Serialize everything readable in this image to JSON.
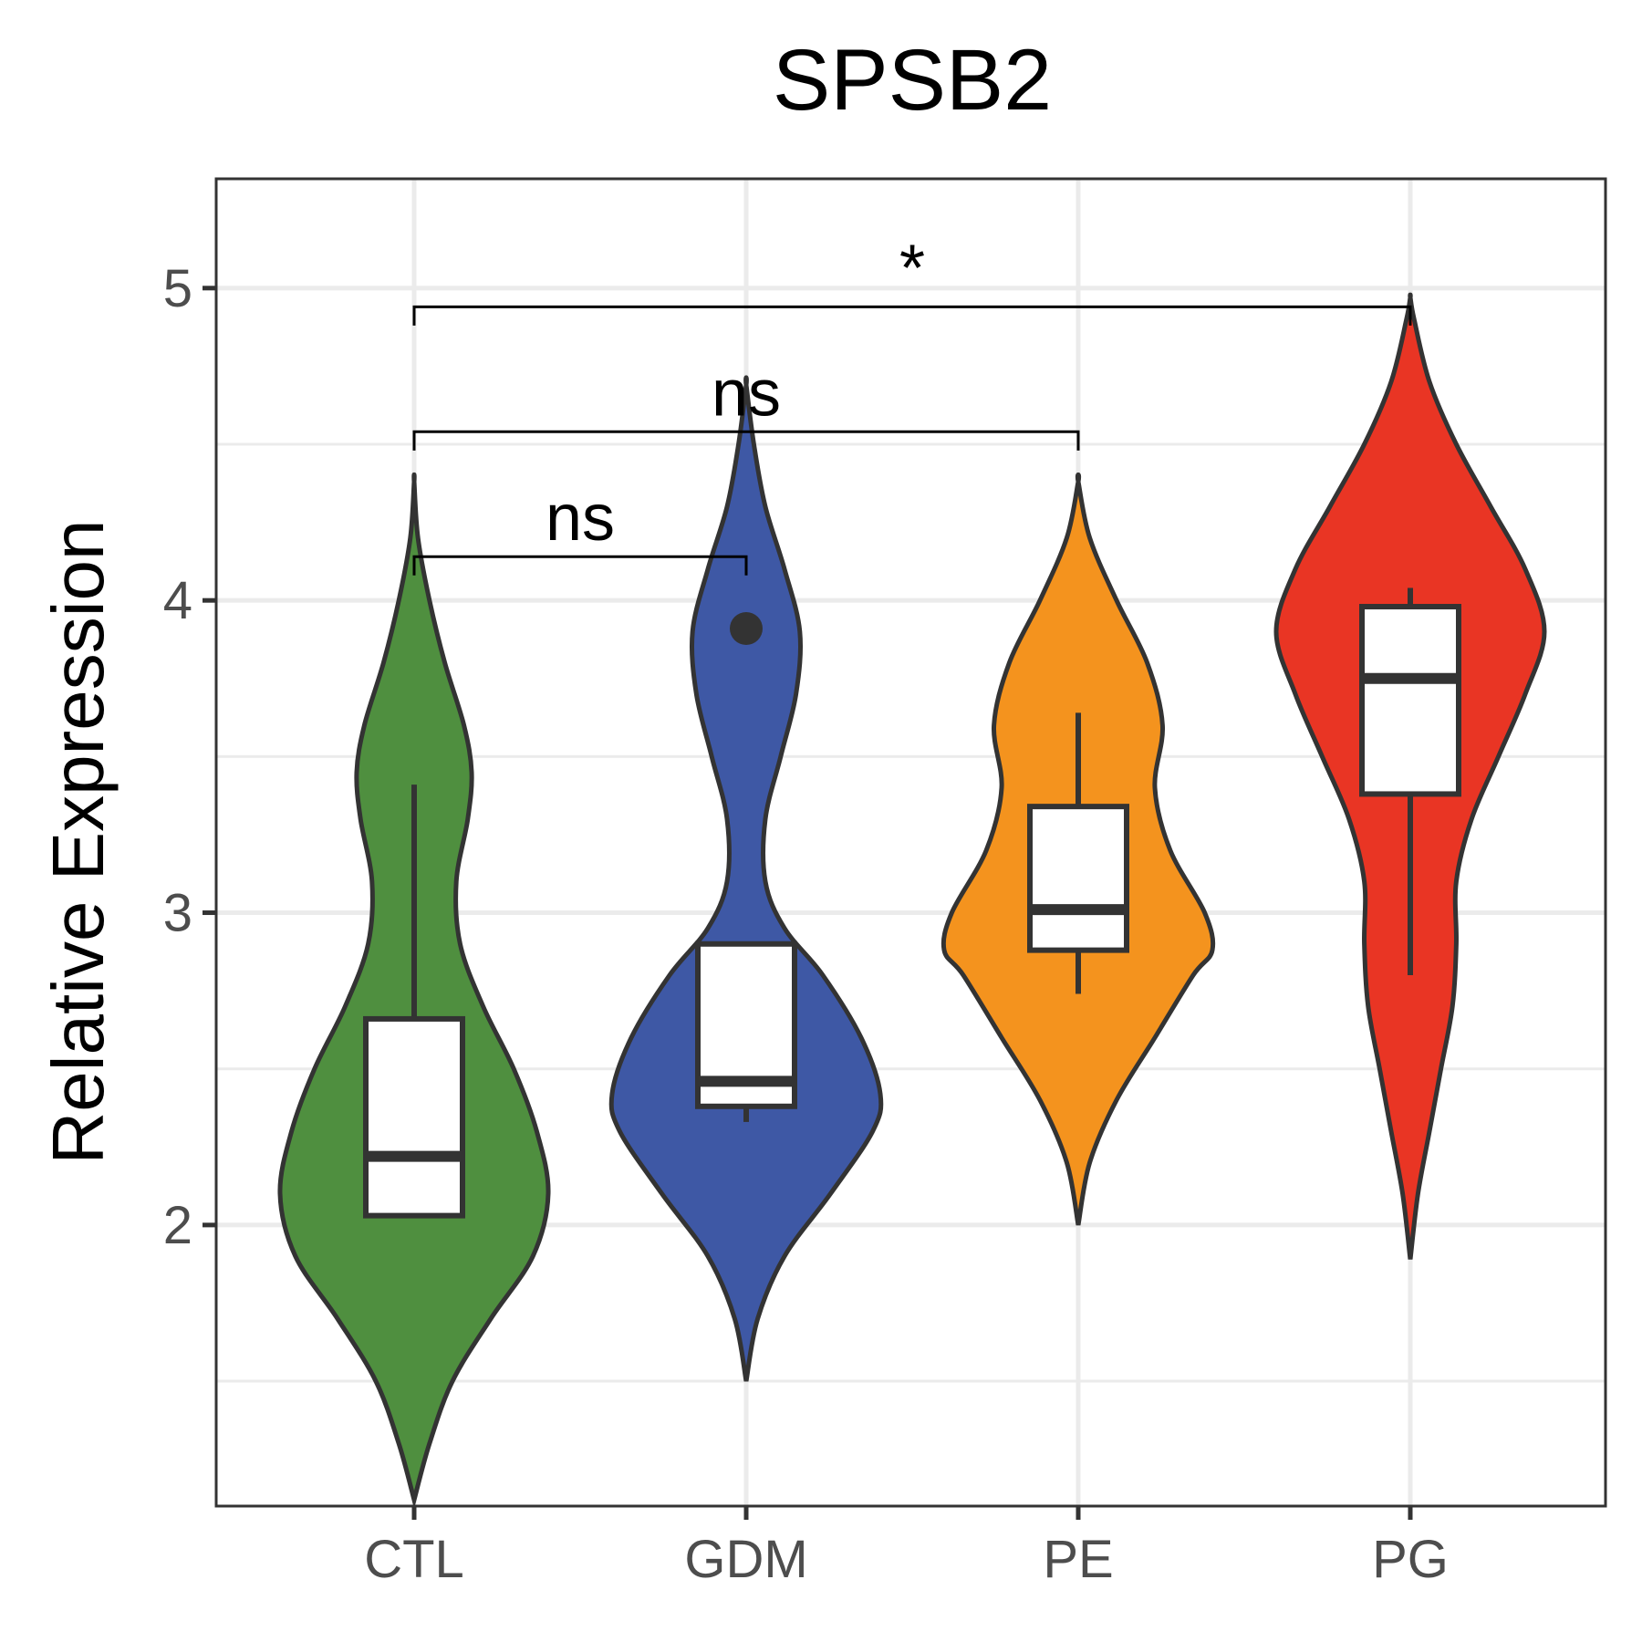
{
  "chart_data": {
    "type": "violin",
    "title": "SPSB2",
    "xlabel": "",
    "ylabel": "Relative Expression",
    "ylim": [
      1.1,
      5.35
    ],
    "y_ticks": [
      "2",
      "3",
      "4",
      "5"
    ],
    "y_tick_values": [
      2,
      3,
      4,
      5
    ],
    "grid": true,
    "categories": [
      "CTL",
      "GDM",
      "PE",
      "PG"
    ],
    "groups": [
      {
        "name": "CTL",
        "color": "#4f8f3f",
        "violin_min": 1.12,
        "violin_max": 4.38,
        "box": {
          "whisker_low": 2.03,
          "q1": 2.03,
          "median": 2.22,
          "q3": 2.66,
          "whisker_high": 3.41
        },
        "outliers": [],
        "density": [
          [
            1.12,
            0
          ],
          [
            1.3,
            0.04
          ],
          [
            1.5,
            0.1
          ],
          [
            1.7,
            0.2
          ],
          [
            1.9,
            0.31
          ],
          [
            2.1,
            0.35
          ],
          [
            2.3,
            0.32
          ],
          [
            2.5,
            0.26
          ],
          [
            2.7,
            0.18
          ],
          [
            2.9,
            0.12
          ],
          [
            3.1,
            0.11
          ],
          [
            3.3,
            0.14
          ],
          [
            3.45,
            0.15
          ],
          [
            3.6,
            0.13
          ],
          [
            3.8,
            0.08
          ],
          [
            4.0,
            0.04
          ],
          [
            4.2,
            0.01
          ],
          [
            4.38,
            0
          ]
        ]
      },
      {
        "name": "GDM",
        "color": "#3e58a5",
        "violin_min": 1.5,
        "violin_max": 4.69,
        "box": {
          "whisker_low": 2.33,
          "q1": 2.38,
          "median": 2.46,
          "q3": 2.9,
          "whisker_high": 2.9
        },
        "outliers": [
          3.91
        ],
        "density": [
          [
            1.5,
            0
          ],
          [
            1.7,
            0.03
          ],
          [
            1.9,
            0.1
          ],
          [
            2.1,
            0.22
          ],
          [
            2.3,
            0.33
          ],
          [
            2.42,
            0.35
          ],
          [
            2.6,
            0.3
          ],
          [
            2.8,
            0.2
          ],
          [
            2.95,
            0.1
          ],
          [
            3.1,
            0.05
          ],
          [
            3.3,
            0.05
          ],
          [
            3.5,
            0.09
          ],
          [
            3.7,
            0.13
          ],
          [
            3.9,
            0.14
          ],
          [
            4.1,
            0.1
          ],
          [
            4.3,
            0.05
          ],
          [
            4.5,
            0.02
          ],
          [
            4.69,
            0
          ]
        ]
      },
      {
        "name": "PE",
        "color": "#f4931e",
        "violin_min": 2.0,
        "violin_max": 4.38,
        "box": {
          "whisker_low": 2.74,
          "q1": 2.88,
          "median": 3.01,
          "q3": 3.34,
          "whisker_high": 3.64
        },
        "outliers": [],
        "density": [
          [
            2.0,
            0
          ],
          [
            2.2,
            0.03
          ],
          [
            2.4,
            0.1
          ],
          [
            2.6,
            0.2
          ],
          [
            2.8,
            0.3
          ],
          [
            2.88,
            0.35
          ],
          [
            3.0,
            0.33
          ],
          [
            3.2,
            0.24
          ],
          [
            3.4,
            0.2
          ],
          [
            3.6,
            0.22
          ],
          [
            3.8,
            0.18
          ],
          [
            4.0,
            0.1
          ],
          [
            4.2,
            0.03
          ],
          [
            4.38,
            0
          ]
        ]
      },
      {
        "name": "PG",
        "color": "#e93524",
        "violin_min": 1.89,
        "violin_max": 4.97,
        "box": {
          "whisker_low": 2.8,
          "q1": 3.38,
          "median": 3.75,
          "q3": 3.98,
          "whisker_high": 4.04
        },
        "outliers": [],
        "density": [
          [
            1.89,
            0
          ],
          [
            2.1,
            0.02
          ],
          [
            2.3,
            0.05
          ],
          [
            2.5,
            0.08
          ],
          [
            2.7,
            0.11
          ],
          [
            2.9,
            0.12
          ],
          [
            3.1,
            0.12
          ],
          [
            3.3,
            0.16
          ],
          [
            3.5,
            0.23
          ],
          [
            3.7,
            0.3
          ],
          [
            3.9,
            0.35
          ],
          [
            4.1,
            0.3
          ],
          [
            4.3,
            0.21
          ],
          [
            4.5,
            0.12
          ],
          [
            4.7,
            0.05
          ],
          [
            4.9,
            0.01
          ],
          [
            4.97,
            0
          ]
        ]
      }
    ],
    "comparisons": [
      {
        "from": "CTL",
        "to": "GDM",
        "label": "ns",
        "y": 4.14,
        "tip_y": 4.08
      },
      {
        "from": "CTL",
        "to": "PE",
        "label": "ns",
        "y": 4.54,
        "tip_y": 4.48
      },
      {
        "from": "CTL",
        "to": "PG",
        "label": "*",
        "y": 4.94,
        "tip_y": 4.88
      }
    ]
  }
}
